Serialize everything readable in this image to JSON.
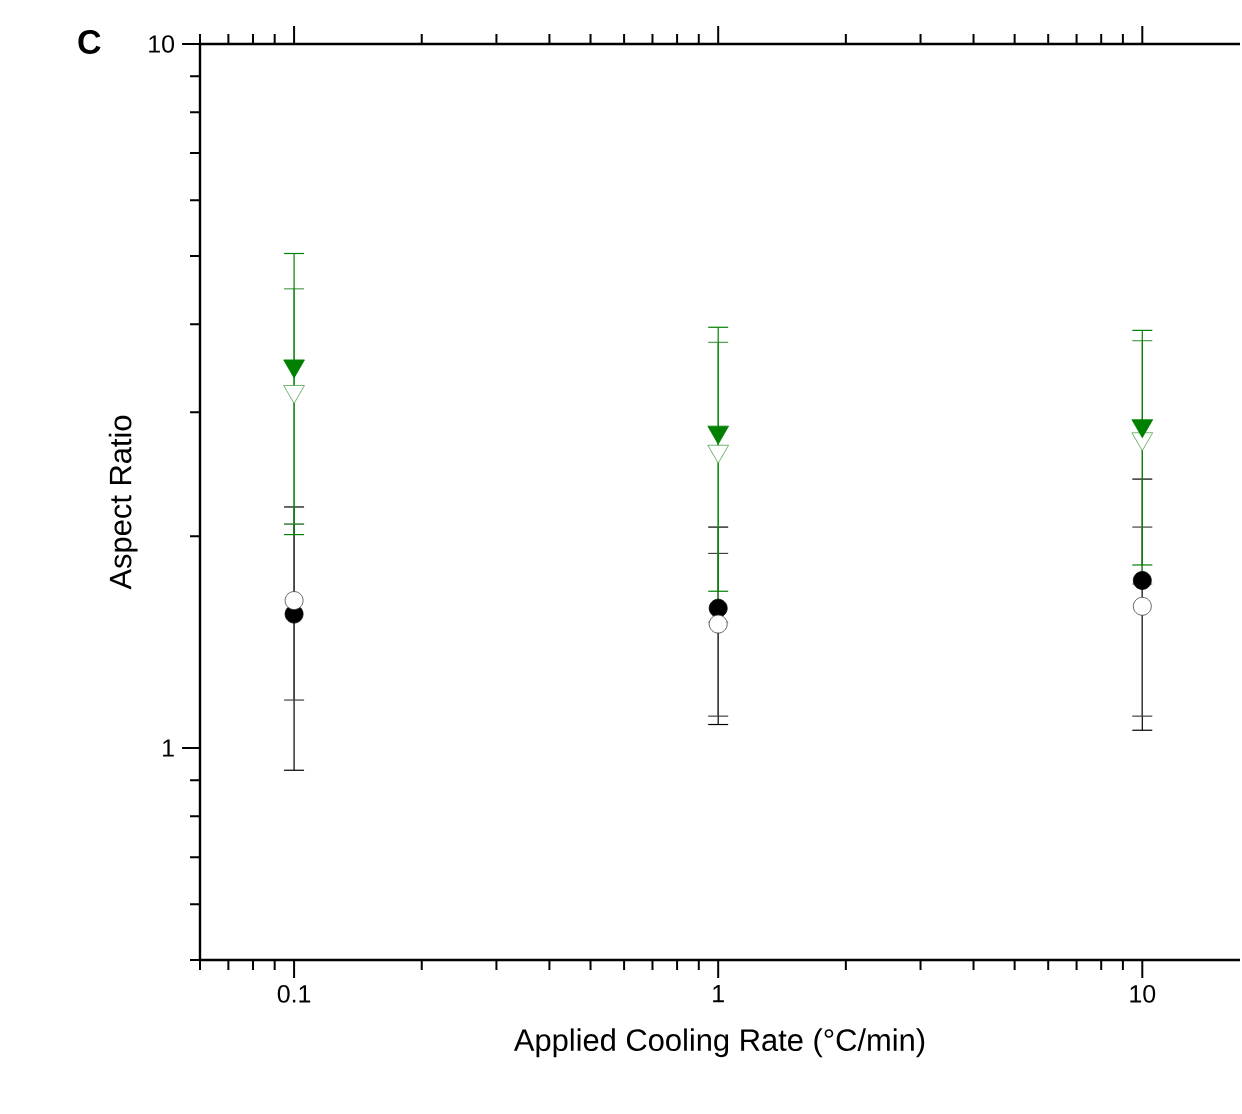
{
  "chart_data": {
    "type": "scatter",
    "xlabel": "Applied Cooling Rate (°C/min)",
    "ylabel": "Aspect Ratio",
    "annotations": [
      "C"
    ],
    "log": "xy",
    "xlim": [
      0.06,
      17
    ],
    "ylim": [
      0.5,
      10
    ],
    "xticks": [
      0.1,
      1,
      10
    ],
    "yticks": [
      1,
      10
    ],
    "series": [
      {
        "color": "#000000",
        "marker": "circle",
        "x": [
          0.1,
          1,
          10
        ],
        "values": [
          1.55,
          1.58,
          1.73
        ],
        "errors": [
          [
            0.93,
            2.2
          ],
          [
            1.08,
            2.06
          ],
          [
            1.06,
            2.41
          ]
        ]
      },
      {
        "color": "#404040",
        "marker": "circle_open",
        "x": [
          0.1,
          1,
          10
        ],
        "values": [
          1.62,
          1.5,
          1.59
        ],
        "errors": [
          [
            1.17,
            2.08
          ],
          [
            1.11,
            1.89
          ],
          [
            1.11,
            2.06
          ]
        ]
      },
      {
        "color": "#4f9f4f",
        "marker": "triangle_open",
        "x": [
          0.1,
          1,
          10
        ],
        "values": [
          3.21,
          2.64,
          2.75
        ],
        "errors": [
          [
            2.08,
            4.49
          ],
          [
            1.51,
            3.77
          ],
          [
            1.71,
            3.79
          ]
        ]
      },
      {
        "color": "#008000",
        "marker": "triangle",
        "x": [
          0.1,
          1,
          10
        ],
        "values": [
          3.49,
          2.81,
          2.87
        ],
        "errors": [
          [
            2.01,
            5.04
          ],
          [
            1.67,
            3.96
          ],
          [
            1.82,
            3.92
          ]
        ]
      }
    ]
  }
}
